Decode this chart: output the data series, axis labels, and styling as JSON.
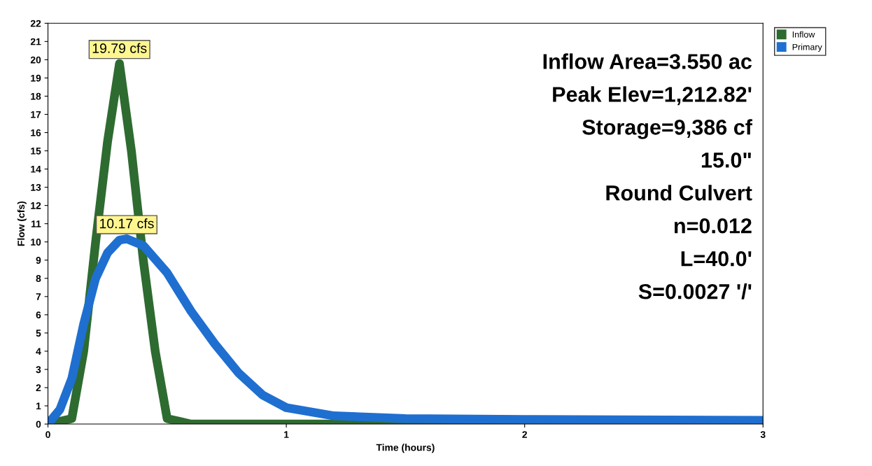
{
  "chart_data": {
    "type": "line",
    "xlabel": "Time (hours)",
    "ylabel": "Flow (cfs)",
    "xlim": [
      0,
      3
    ],
    "xticks": [
      0,
      1,
      2,
      3
    ],
    "ylim": [
      0,
      22
    ],
    "yticks": [
      0,
      1,
      2,
      3,
      4,
      5,
      6,
      7,
      8,
      9,
      10,
      11,
      12,
      13,
      14,
      15,
      16,
      17,
      18,
      19,
      20,
      21,
      22
    ],
    "grid": false,
    "legend": "top right",
    "marker": "none",
    "line_style": "solid",
    "series": [
      {
        "name": "Inflow",
        "color": "#2e6b30",
        "x": [
          0,
          0.1,
          0.15,
          0.2,
          0.25,
          0.3,
          0.35,
          0.4,
          0.45,
          0.5,
          0.6,
          1,
          2,
          3
        ],
        "values": [
          0,
          0.3,
          4,
          10,
          15.5,
          19.79,
          15,
          9,
          4,
          0.3,
          0,
          0,
          0,
          0
        ]
      },
      {
        "name": "Primary",
        "color": "#1f6fd0",
        "x": [
          0,
          0.05,
          0.1,
          0.15,
          0.2,
          0.25,
          0.3,
          0.33,
          0.4,
          0.5,
          0.6,
          0.7,
          0.8,
          0.9,
          1.0,
          1.2,
          1.5,
          2,
          3
        ],
        "values": [
          0,
          0.8,
          2.5,
          5.5,
          8,
          9.4,
          10.1,
          10.17,
          9.8,
          8.3,
          6.2,
          4.4,
          2.8,
          1.6,
          0.9,
          0.45,
          0.3,
          0.25,
          0.2
        ]
      }
    ],
    "annotations": [
      {
        "text": "19.79 cfs",
        "x": 0.3,
        "y": 19.79
      },
      {
        "text": "10.17 cfs",
        "x": 0.33,
        "y": 10.17
      },
      "Inflow Area=3.550 ac",
      "Peak Elev=1,212.82'",
      "Storage=9,386 cf",
      "15.0\"",
      "Round Culvert",
      "n=0.012",
      "L=40.0'",
      "S=0.0027 '/'"
    ]
  }
}
